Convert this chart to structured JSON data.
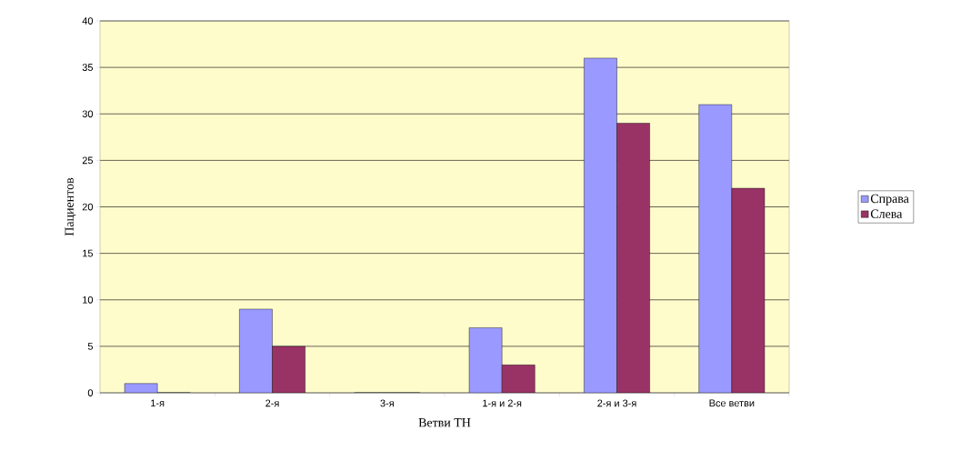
{
  "chart_data": {
    "type": "bar",
    "xlabel": "Ветви ТН",
    "ylabel": "Пациентов",
    "categories": [
      "1-я",
      "2-я",
      "3-я",
      "1-я и 2-я",
      "2-я и 3-я",
      "Все ветви"
    ],
    "series": [
      {
        "name": "Справа",
        "color": "#9999ff",
        "values": [
          1,
          9,
          0,
          7,
          36,
          31
        ]
      },
      {
        "name": "Слева",
        "color": "#993366",
        "values": [
          0,
          5,
          0,
          3,
          29,
          22
        ]
      }
    ],
    "ylim": [
      0,
      40
    ],
    "yticks": [
      0,
      5,
      10,
      15,
      20,
      25,
      30,
      35,
      40
    ],
    "grid": "y",
    "legend": "right"
  }
}
